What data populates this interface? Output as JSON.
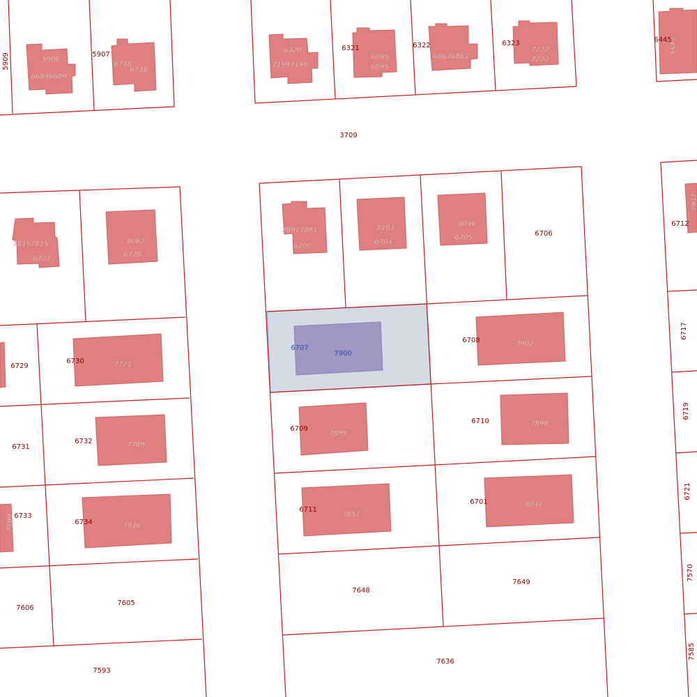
{
  "labels": [
    "5909",
    "5908",
    "66896689",
    "5907",
    "6738",
    "6738",
    "6320",
    "71997199",
    "6321",
    "6895",
    "6895",
    "6322",
    "68636863",
    "6323",
    "7222",
    "7222",
    "6445",
    "7454",
    "3709",
    "78917891",
    "6700",
    "8103",
    "6704",
    "8046",
    "6705",
    "6706",
    "6707",
    "7900",
    "6708",
    "7902",
    "6709",
    "7895",
    "6710",
    "7898",
    "6711",
    "7851",
    "6701",
    "8041",
    "7648",
    "7649",
    "7636",
    "78157815",
    "6727",
    "8062",
    "6728",
    "6729",
    "6730",
    "7721",
    "6731",
    "6732",
    "7789",
    "7899",
    "6733",
    "6734",
    "7936",
    "7606",
    "7605",
    "7593",
    "7937",
    "6712",
    "6717",
    "6719",
    "6721",
    "7570",
    "7585"
  ]
}
